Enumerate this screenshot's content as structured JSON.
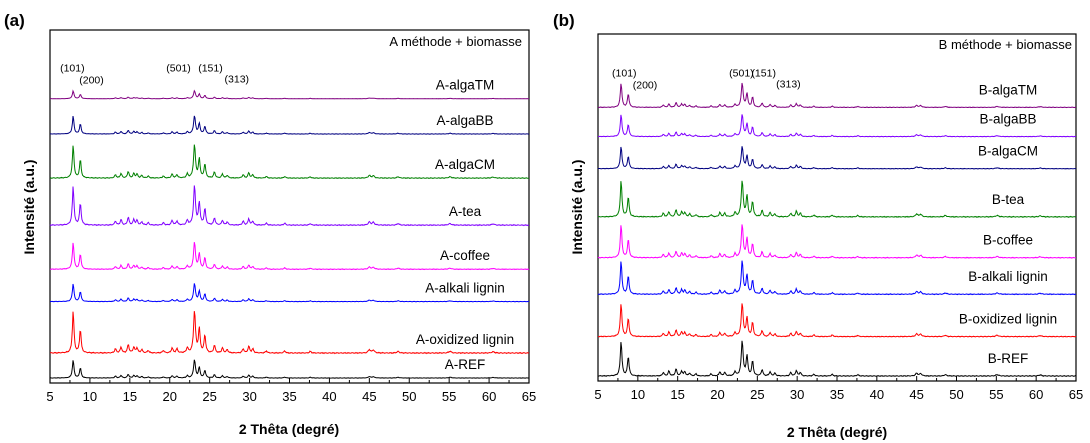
{
  "chart_data": [
    {
      "type": "line",
      "panel_label": "(a)",
      "legend_title": "A méthode + biomasse",
      "xlabel": "2 Thêta (degré)",
      "ylabel": "Intensité (a.u.)",
      "xlim": [
        5,
        65
      ],
      "x_ticks": [
        5,
        10,
        15,
        20,
        25,
        30,
        35,
        40,
        45,
        50,
        55,
        60,
        65
      ],
      "peak_labels": [
        {
          "text": "(101)",
          "x": 7.8
        },
        {
          "text": "(200)",
          "x": 10.2
        },
        {
          "text": "(501)",
          "x": 21.1
        },
        {
          "text": "(151)",
          "x": 25.1
        },
        {
          "text": "(313)",
          "x": 28.4
        }
      ],
      "series": [
        {
          "name": "A-algaTM",
          "color": "#800080",
          "baseline": 0.95,
          "scale": 0.13
        },
        {
          "name": "A-algaBB",
          "color": "#000080",
          "baseline": 0.83,
          "scale": 0.3
        },
        {
          "name": "A-algaCM",
          "color": "#008000",
          "baseline": 0.68,
          "scale": 0.55
        },
        {
          "name": "A-tea",
          "color": "#8000ff",
          "baseline": 0.52,
          "scale": 0.65
        },
        {
          "name": "A-coffee",
          "color": "#ff00ff",
          "baseline": 0.37,
          "scale": 0.45
        },
        {
          "name": "A-alkali lignin",
          "color": "#0000ff",
          "baseline": 0.26,
          "scale": 0.3
        },
        {
          "name": "A-oxidized lignin",
          "color": "#ff0000",
          "baseline": 0.085,
          "scale": 0.7
        },
        {
          "name": "A-REF",
          "color": "#000000",
          "baseline": 0.0,
          "scale": 0.3
        }
      ]
    },
    {
      "type": "line",
      "panel_label": "(b)",
      "legend_title": "B méthode + biomasse",
      "xlabel": "2 Thêta (degré)",
      "ylabel": "Intensité (a.u.)",
      "xlim": [
        5,
        65
      ],
      "x_ticks": [
        5,
        10,
        15,
        20,
        25,
        30,
        35,
        40,
        45,
        50,
        55,
        60,
        65
      ],
      "peak_labels": [
        {
          "text": "(101)",
          "x": 8.3
        },
        {
          "text": "(200)",
          "x": 10.9
        },
        {
          "text": "(501)",
          "x": 23.0
        },
        {
          "text": "(151)",
          "x": 25.8
        },
        {
          "text": "(313)",
          "x": 28.9
        }
      ],
      "series": [
        {
          "name": "B-algaTM",
          "color": "#800080",
          "baseline": 0.92,
          "scale": 0.4
        },
        {
          "name": "B-algaBB",
          "color": "#8000ff",
          "baseline": 0.82,
          "scale": 0.37
        },
        {
          "name": "B-algaCM",
          "color": "#000080",
          "baseline": 0.71,
          "scale": 0.37
        },
        {
          "name": "B-tea",
          "color": "#008000",
          "baseline": 0.545,
          "scale": 0.6
        },
        {
          "name": "B-coffee",
          "color": "#ff00ff",
          "baseline": 0.405,
          "scale": 0.55
        },
        {
          "name": "B-alkali lignin",
          "color": "#0000ff",
          "baseline": 0.28,
          "scale": 0.55
        },
        {
          "name": "B-oxidized lignin",
          "color": "#ff0000",
          "baseline": 0.135,
          "scale": 0.55
        },
        {
          "name": "B-REF",
          "color": "#000000",
          "baseline": 0.0,
          "scale": 0.58
        }
      ]
    }
  ]
}
